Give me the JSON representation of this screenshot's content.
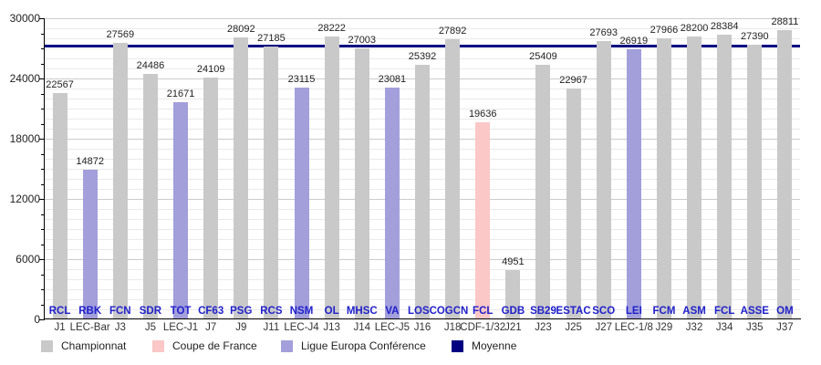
{
  "chart_data": {
    "type": "bar",
    "title": "",
    "xlabel": "",
    "ylabel": "",
    "ylim": [
      0,
      30000
    ],
    "y_ticks": [
      0,
      6000,
      12000,
      18000,
      24000,
      30000
    ],
    "minor_grid_step": 1000,
    "minor_tick_step": 1500,
    "grid": true,
    "legend_position": "bottom",
    "categories": [
      "J1",
      "LEC-Bar",
      "J3",
      "J5",
      "LEC-J1",
      "J7",
      "J9",
      "J11",
      "LEC-J4",
      "J13",
      "J14",
      "LEC-J5",
      "J16",
      "J18",
      "CDF-1/32",
      "J21",
      "J23",
      "J25",
      "J27",
      "LEC-1/8",
      "J29",
      "J32",
      "J34",
      "J35",
      "J37"
    ],
    "opponents": [
      "RCL",
      "RBK",
      "FCN",
      "SDR",
      "TOT",
      "CF63",
      "PSG",
      "RCS",
      "NSM",
      "OL",
      "MHSC",
      "VA",
      "LOSC",
      "OGCN",
      "FCL",
      "GDB",
      "SB29",
      "ESTAC",
      "SCO",
      "LEI",
      "FCM",
      "ASM",
      "FCL",
      "ASSE",
      "OM"
    ],
    "values": [
      22567,
      14872,
      27569,
      24486,
      21671,
      24109,
      28092,
      27185,
      23115,
      28222,
      27003,
      23081,
      25392,
      27892,
      19636,
      4951,
      25409,
      22967,
      27693,
      26919,
      27966,
      28200,
      28384,
      27390,
      28811
    ],
    "competitions": [
      "championnat",
      "lec",
      "championnat",
      "championnat",
      "lec",
      "championnat",
      "championnat",
      "championnat",
      "lec",
      "championnat",
      "championnat",
      "lec",
      "championnat",
      "championnat",
      "cdf",
      "championnat",
      "championnat",
      "championnat",
      "championnat",
      "lec",
      "championnat",
      "championnat",
      "championnat",
      "championnat",
      "championnat"
    ],
    "colors": {
      "championnat": "#c9c9c9",
      "cdf": "#fbc7c7",
      "lec": "#a29fdb",
      "moyenne": "#000080",
      "opponent_label": "#2020cc",
      "journee_label": "#333333",
      "value_label": "#1f1f1f"
    },
    "average_line": {
      "label": "Moyenne",
      "value": 27200,
      "color": "#000080"
    },
    "legend": [
      {
        "label": "Championnat",
        "key": "championnat",
        "color": "#c9c9c9"
      },
      {
        "label": "Coupe de France",
        "key": "cdf",
        "color": "#fbc7c7"
      },
      {
        "label": "Ligue Europa Conférence",
        "key": "lec",
        "color": "#a29fdb"
      },
      {
        "label": "Moyenne",
        "key": "moyenne",
        "color": "#000080"
      }
    ]
  }
}
